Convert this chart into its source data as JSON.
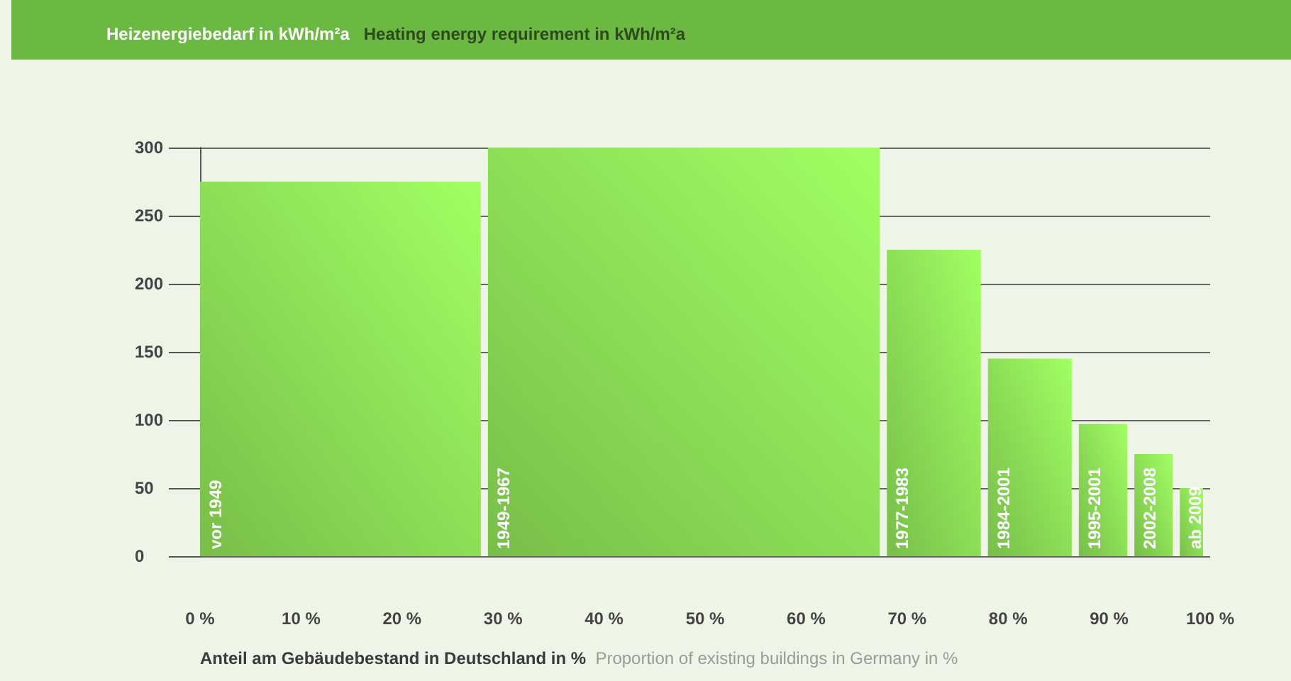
{
  "chart_data": {
    "type": "histogram",
    "title": "Heizenergiebedarf in kWh/m²a",
    "subtitle": "Heating energy requirement in kWh/m²a",
    "xlabel": "Anteil am Gebäudebestand in Deutschland in %",
    "bins": [
      0,
      28.5,
      68,
      78,
      87,
      92.5,
      97,
      100
    ],
    "values": [
      275,
      300,
      225,
      145,
      97,
      75,
      50
    ],
    "color": "#78be4a",
    "xlim": [
      0,
      100
    ],
    "xticks": [
      {
        "value": 0,
        "label": "0 %"
      },
      {
        "value": 10,
        "label": "10 %"
      },
      {
        "value": 20,
        "label": "20 %"
      },
      {
        "value": 30,
        "label": "30 %"
      },
      {
        "value": 40,
        "label": "40 %"
      },
      {
        "value": 50,
        "label": "50 %"
      },
      {
        "value": 60,
        "label": "60 %"
      },
      {
        "value": 70,
        "label": "70 %"
      },
      {
        "value": 80,
        "label": "80 %"
      },
      {
        "value": 90,
        "label": "90 %"
      },
      {
        "value": 100,
        "label": "100 %"
      }
    ],
    "ylim": [
      0,
      300
    ],
    "yticks": [
      0,
      50,
      100,
      150,
      200,
      250,
      300
    ],
    "grid": "y",
    "annotations": [
      "Proportion of existing buildings in Germany in %",
      {
        "text": "vor 1949",
        "x": 0,
        "y": 0
      },
      {
        "text": "1949-1967",
        "x": 28.5,
        "y": 0
      },
      {
        "text": "1977-1983",
        "x": 68,
        "y": 0
      },
      {
        "text": "1984-2001",
        "x": 78,
        "y": 0
      },
      {
        "text": "1995-2001",
        "x": 87,
        "y": 0
      },
      {
        "text": "2002-2008",
        "x": 92.5,
        "y": 0
      },
      {
        "text": "ab 2009",
        "x": 97,
        "y": 0
      }
    ]
  }
}
